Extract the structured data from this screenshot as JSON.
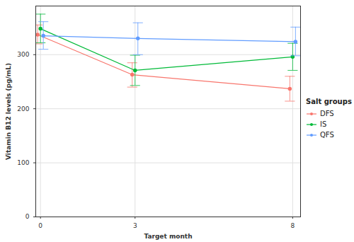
{
  "chart_data": {
    "type": "line",
    "x_label": "Target month",
    "y_label": "Vitamin B12 levels (pg/mL)",
    "x": [
      0,
      3,
      8
    ],
    "xlim": [
      -0.15,
      8.25
    ],
    "xticks": [
      0,
      3,
      8
    ],
    "ylim": [
      0,
      390
    ],
    "yticks": [
      0,
      100,
      200,
      300
    ],
    "grid": true,
    "legend": "right",
    "legend_title": "Salt groups",
    "marker": "circle",
    "line_style": "solid",
    "series": [
      {
        "name": "DFS",
        "color": "#F8766D",
        "values": [
          337,
          263,
          237
        ],
        "ci_low": [
          320,
          240,
          214
        ],
        "ci_high": [
          355,
          285,
          260
        ]
      },
      {
        "name": "IS",
        "color": "#00BA38",
        "values": [
          348,
          271,
          296
        ],
        "ci_low": [
          322,
          243,
          271
        ],
        "ci_high": [
          375,
          299,
          321
        ]
      },
      {
        "name": "QFS",
        "color": "#619CFF",
        "values": [
          335,
          330,
          324
        ],
        "ci_low": [
          310,
          300,
          298
        ],
        "ci_high": [
          361,
          359,
          351
        ]
      }
    ]
  }
}
